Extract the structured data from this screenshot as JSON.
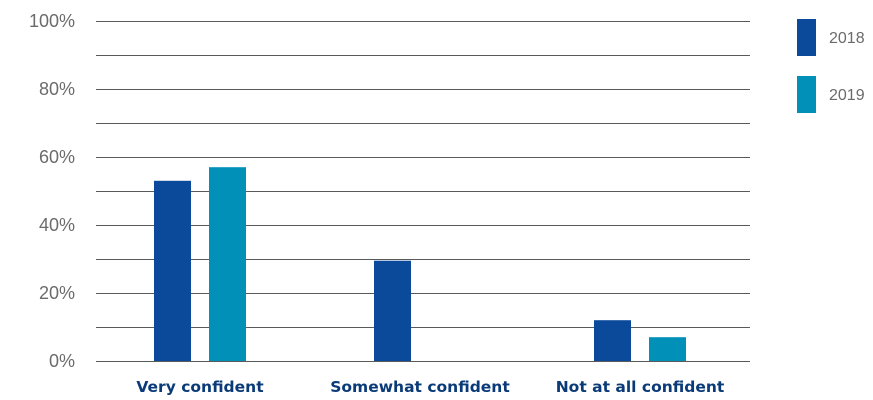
{
  "chart_data": {
    "type": "bar",
    "categories": [
      "Very confident",
      "Somewhat confident",
      "Not at all confident"
    ],
    "series": [
      {
        "name": "2018",
        "color": "#0b4a9a",
        "values": [
          53,
          29.5,
          12
        ]
      },
      {
        "name": "2019",
        "color": "#0090b8",
        "values": [
          57,
          null,
          7
        ]
      }
    ],
    "ylim": [
      0,
      100
    ],
    "yticks": [
      {
        "value": 0,
        "label": "0%"
      },
      {
        "value": 20,
        "label": "20%"
      },
      {
        "value": 40,
        "label": "40%"
      },
      {
        "value": 60,
        "label": "60%"
      },
      {
        "value": 80,
        "label": "80%"
      },
      {
        "value": 100,
        "label": "100%"
      }
    ],
    "grid": true,
    "legend_position": "top-right"
  }
}
